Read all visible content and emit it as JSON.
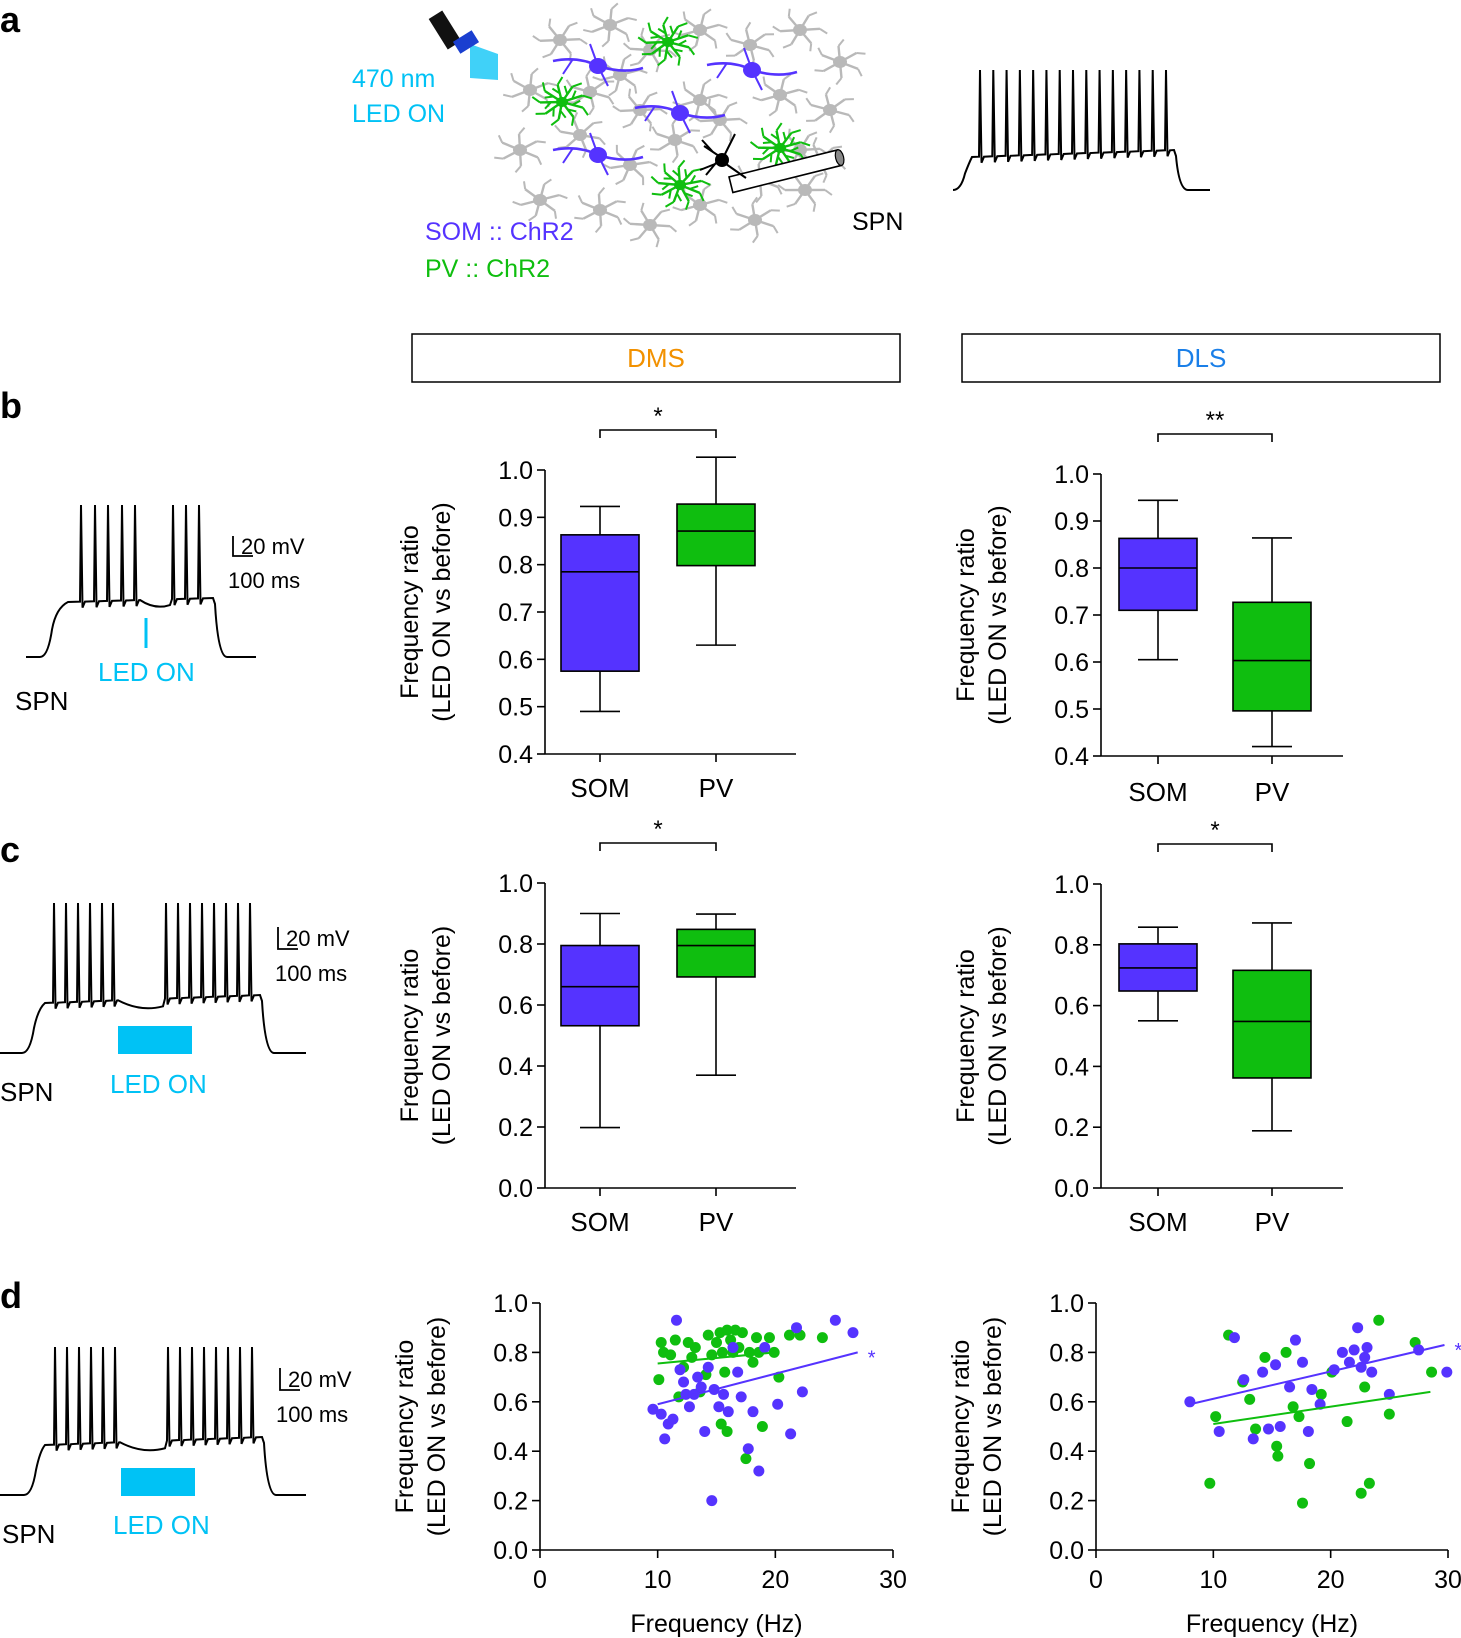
{
  "colors": {
    "som": "#5533ff",
    "pv": "#0fbe0f",
    "led": "#00c2f5",
    "dms": "#f29100",
    "dls": "#1a7fe8",
    "neuron": "#b9b9b9",
    "black": "#000000"
  },
  "panels": {
    "a": "a",
    "b": "b",
    "c": "c",
    "d": "d"
  },
  "schematic": {
    "led_wavelength": "470 nm",
    "led_on": "LED ON",
    "som_label": "SOM :: ChR2",
    "pv_label": "PV :: ChR2",
    "spn_label": "SPN"
  },
  "headers": {
    "dms": "DMS",
    "dls": "DLS"
  },
  "traces": {
    "b": {
      "cell": "SPN",
      "led": "LED ON",
      "scale_v": "20 mV",
      "scale_t": "100 ms"
    },
    "c": {
      "cell": "SPN",
      "led": "LED ON",
      "scale_v": "20 mV",
      "scale_t": "100 ms"
    },
    "d": {
      "cell": "SPN",
      "led": "LED ON",
      "scale_v": "20 mV",
      "scale_t": "100 ms"
    }
  },
  "chart_data": [
    {
      "id": "b-dms",
      "type": "box",
      "region": "DMS",
      "ylabel": [
        "Frequency ratio",
        "(LED ON vs before)"
      ],
      "ylim": [
        0.4,
        1.0
      ],
      "yticks": [
        "0.4",
        "0.5",
        "0.6",
        "0.7",
        "0.8",
        "0.9",
        "1.0"
      ],
      "categories": [
        "SOM",
        "PV"
      ],
      "boxes": [
        {
          "name": "SOM",
          "min": 0.49,
          "q1": 0.575,
          "median": 0.785,
          "q3": 0.863,
          "max": 0.923
        },
        {
          "name": "PV",
          "min": 0.63,
          "q1": 0.798,
          "median": 0.871,
          "q3": 0.928,
          "max": 1.027
        }
      ],
      "significance": "*"
    },
    {
      "id": "b-dls",
      "type": "box",
      "region": "DLS",
      "ylabel": [
        "Frequency ratio",
        "(LED ON vs before)"
      ],
      "ylim": [
        0.4,
        1.0
      ],
      "yticks": [
        "0.4",
        "0.5",
        "0.6",
        "0.7",
        "0.8",
        "0.9",
        "1.0"
      ],
      "categories": [
        "SOM",
        "PV"
      ],
      "boxes": [
        {
          "name": "SOM",
          "min": 0.605,
          "q1": 0.71,
          "median": 0.8,
          "q3": 0.863,
          "max": 0.944
        },
        {
          "name": "PV",
          "min": 0.42,
          "q1": 0.496,
          "median": 0.603,
          "q3": 0.727,
          "max": 0.864
        }
      ],
      "significance": "**"
    },
    {
      "id": "c-dms",
      "type": "box",
      "region": "DMS",
      "ylabel": [
        "Frequency ratio",
        "(LED ON vs before)"
      ],
      "ylim": [
        0.0,
        1.0
      ],
      "yticks": [
        "0.0",
        "0.2",
        "0.4",
        "0.6",
        "0.8",
        "1.0"
      ],
      "categories": [
        "SOM",
        "PV"
      ],
      "boxes": [
        {
          "name": "SOM",
          "min": 0.198,
          "q1": 0.532,
          "median": 0.66,
          "q3": 0.795,
          "max": 0.9
        },
        {
          "name": "PV",
          "min": 0.37,
          "q1": 0.692,
          "median": 0.795,
          "q3": 0.848,
          "max": 0.898
        }
      ],
      "significance": "*"
    },
    {
      "id": "c-dls",
      "type": "box",
      "region": "DLS",
      "ylabel": [
        "Frequency ratio",
        "(LED ON vs before)"
      ],
      "ylim": [
        0.0,
        1.0
      ],
      "yticks": [
        "0.0",
        "0.2",
        "0.4",
        "0.6",
        "0.8",
        "1.0"
      ],
      "categories": [
        "SOM",
        "PV"
      ],
      "boxes": [
        {
          "name": "SOM",
          "min": 0.55,
          "q1": 0.648,
          "median": 0.724,
          "q3": 0.803,
          "max": 0.858
        },
        {
          "name": "PV",
          "min": 0.188,
          "q1": 0.362,
          "median": 0.548,
          "q3": 0.716,
          "max": 0.872
        }
      ],
      "significance": "*"
    },
    {
      "id": "d-dms",
      "type": "scatter",
      "region": "DMS",
      "xlabel": "Frequency (Hz)",
      "ylabel": [
        "Frequency ratio",
        "(LED ON vs before)"
      ],
      "xlim": [
        0,
        30
      ],
      "ylim": [
        0.0,
        1.0
      ],
      "xticks": [
        "0",
        "10",
        "20",
        "30"
      ],
      "yticks": [
        "0.0",
        "0.2",
        "0.4",
        "0.6",
        "0.8",
        "1.0"
      ],
      "series": [
        {
          "name": "PV",
          "color": "pv",
          "points": [
            [
              10.1,
              0.69
            ],
            [
              10.3,
              0.84
            ],
            [
              10.5,
              0.8
            ],
            [
              11.1,
              0.79
            ],
            [
              11.5,
              0.85
            ],
            [
              11.8,
              0.62
            ],
            [
              12.2,
              0.74
            ],
            [
              12.6,
              0.84
            ],
            [
              12.9,
              0.78
            ],
            [
              13.2,
              0.82
            ],
            [
              13.6,
              0.64
            ],
            [
              14.1,
              0.71
            ],
            [
              14.3,
              0.87
            ],
            [
              14.6,
              0.79
            ],
            [
              15.0,
              0.84
            ],
            [
              15.3,
              0.88
            ],
            [
              15.5,
              0.8
            ],
            [
              15.7,
              0.72
            ],
            [
              15.9,
              0.89
            ],
            [
              16.2,
              0.85
            ],
            [
              16.4,
              0.8
            ],
            [
              16.6,
              0.89
            ],
            [
              16.9,
              0.82
            ],
            [
              17.2,
              0.88
            ],
            [
              17.5,
              0.37
            ],
            [
              17.8,
              0.8
            ],
            [
              18.1,
              0.76
            ],
            [
              18.4,
              0.86
            ],
            [
              18.6,
              0.8
            ],
            [
              18.9,
              0.5
            ],
            [
              19.5,
              0.86
            ],
            [
              19.9,
              0.8
            ],
            [
              20.3,
              0.7
            ],
            [
              21.2,
              0.87
            ],
            [
              22.1,
              0.87
            ],
            [
              15.4,
              0.51
            ],
            [
              24.0,
              0.86
            ],
            [
              15.9,
              0.48
            ]
          ]
        },
        {
          "name": "SOM",
          "color": "som",
          "points": [
            [
              9.6,
              0.57
            ],
            [
              10.3,
              0.55
            ],
            [
              10.6,
              0.45
            ],
            [
              10.9,
              0.51
            ],
            [
              11.3,
              0.53
            ],
            [
              11.6,
              0.93
            ],
            [
              11.9,
              0.73
            ],
            [
              12.2,
              0.68
            ],
            [
              12.4,
              0.63
            ],
            [
              12.7,
              0.58
            ],
            [
              13.1,
              0.63
            ],
            [
              13.4,
              0.7
            ],
            [
              13.7,
              0.66
            ],
            [
              14.0,
              0.48
            ],
            [
              14.3,
              0.74
            ],
            [
              14.6,
              0.2
            ],
            [
              14.8,
              0.65
            ],
            [
              15.2,
              0.58
            ],
            [
              15.6,
              0.63
            ],
            [
              16.0,
              0.56
            ],
            [
              16.4,
              0.82
            ],
            [
              16.8,
              0.72
            ],
            [
              17.1,
              0.62
            ],
            [
              17.7,
              0.41
            ],
            [
              18.1,
              0.56
            ],
            [
              18.6,
              0.32
            ],
            [
              19.1,
              0.82
            ],
            [
              20.2,
              0.59
            ],
            [
              21.3,
              0.47
            ],
            [
              21.8,
              0.9
            ],
            [
              22.3,
              0.64
            ],
            [
              25.1,
              0.93
            ],
            [
              26.6,
              0.88
            ]
          ]
        }
      ],
      "fits": [
        {
          "series": "PV",
          "x": [
            10,
            20
          ],
          "y": [
            0.755,
            0.8
          ]
        },
        {
          "series": "SOM",
          "x": [
            10,
            27
          ],
          "y": [
            0.59,
            0.8
          ]
        }
      ],
      "annotation": "*"
    },
    {
      "id": "d-dls",
      "type": "scatter",
      "region": "DLS",
      "xlabel": "Frequency (Hz)",
      "ylabel": [
        "Frequency ratio",
        "(LED ON vs before)"
      ],
      "xlim": [
        0,
        30
      ],
      "ylim": [
        0.0,
        1.0
      ],
      "xticks": [
        "0",
        "10",
        "20",
        "30"
      ],
      "yticks": [
        "0.0",
        "0.2",
        "0.4",
        "0.6",
        "0.8",
        "1.0"
      ],
      "series": [
        {
          "name": "PV",
          "color": "pv",
          "points": [
            [
              9.7,
              0.27
            ],
            [
              10.2,
              0.54
            ],
            [
              11.3,
              0.87
            ],
            [
              12.5,
              0.68
            ],
            [
              13.1,
              0.61
            ],
            [
              13.6,
              0.49
            ],
            [
              14.4,
              0.78
            ],
            [
              15.4,
              0.42
            ],
            [
              15.5,
              0.38
            ],
            [
              16.2,
              0.8
            ],
            [
              16.8,
              0.58
            ],
            [
              17.3,
              0.54
            ],
            [
              17.6,
              0.19
            ],
            [
              18.2,
              0.35
            ],
            [
              19.2,
              0.63
            ],
            [
              20.1,
              0.72
            ],
            [
              21.4,
              0.52
            ],
            [
              22.6,
              0.23
            ],
            [
              22.9,
              0.66
            ],
            [
              23.3,
              0.27
            ],
            [
              24.1,
              0.93
            ],
            [
              25.0,
              0.55
            ],
            [
              27.2,
              0.84
            ],
            [
              28.6,
              0.72
            ]
          ]
        },
        {
          "name": "SOM",
          "color": "som",
          "points": [
            [
              8.0,
              0.6
            ],
            [
              10.5,
              0.48
            ],
            [
              11.8,
              0.86
            ],
            [
              12.6,
              0.69
            ],
            [
              13.4,
              0.45
            ],
            [
              14.2,
              0.72
            ],
            [
              14.7,
              0.49
            ],
            [
              15.3,
              0.75
            ],
            [
              15.7,
              0.5
            ],
            [
              16.5,
              0.66
            ],
            [
              17.0,
              0.85
            ],
            [
              17.6,
              0.76
            ],
            [
              18.1,
              0.48
            ],
            [
              18.4,
              0.65
            ],
            [
              19.1,
              0.59
            ],
            [
              20.3,
              0.73
            ],
            [
              21.0,
              0.8
            ],
            [
              21.6,
              0.76
            ],
            [
              22.0,
              0.81
            ],
            [
              22.3,
              0.9
            ],
            [
              22.6,
              0.74
            ],
            [
              22.9,
              0.78
            ],
            [
              23.1,
              0.82
            ],
            [
              23.5,
              0.72
            ],
            [
              25.0,
              0.63
            ],
            [
              27.5,
              0.81
            ],
            [
              29.9,
              0.72
            ]
          ]
        }
      ],
      "fits": [
        {
          "series": "PV",
          "x": [
            10,
            28.5
          ],
          "y": [
            0.51,
            0.64
          ]
        },
        {
          "series": "SOM",
          "x": [
            8,
            29.7
          ],
          "y": [
            0.59,
            0.83
          ]
        }
      ],
      "annotation": "*"
    }
  ]
}
